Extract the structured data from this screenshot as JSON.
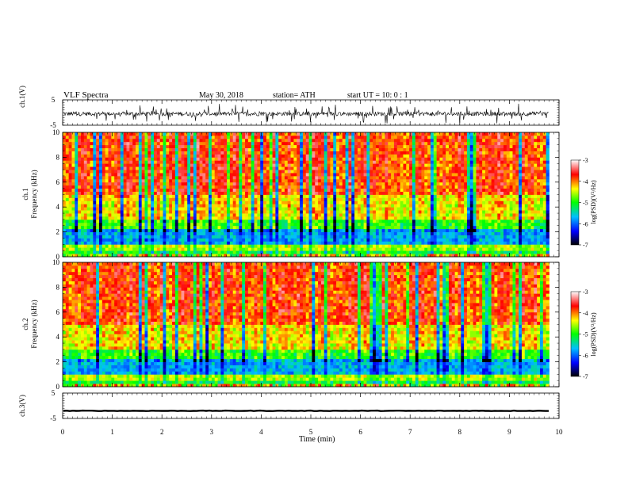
{
  "header": {
    "title": "VLF Spectra",
    "date": "May 30, 2018",
    "station": "station= ATH",
    "start_ut": "start  UT  =    10: 0   : 1"
  },
  "chart_data": [
    {
      "type": "line",
      "name": "waveform-ch1",
      "ylabel": "ch.1(V)",
      "ylim": [
        -5,
        5
      ],
      "yticks": [
        "5",
        "-5"
      ],
      "xlim": [
        0,
        10
      ],
      "data_extent_min": 9.8,
      "signal_level": "noisy trace around -0.5 V, excursions to about ±4 V"
    },
    {
      "type": "heatmap",
      "name": "spectrogram-ch1",
      "ylabel_lines": [
        "ch.1",
        "Frequency  (kHz)"
      ],
      "ylim": [
        0,
        10
      ],
      "yticks": [
        "0",
        "2",
        "4",
        "6",
        "8",
        "10"
      ],
      "xlim": [
        0,
        10
      ],
      "data_extent_min": 9.8,
      "colorbar": {
        "label": "log(PSD)(V²/Hz)",
        "range": [
          -7,
          -3
        ],
        "ticks": [
          "-3",
          "-4",
          "-5",
          "-6",
          "-7"
        ],
        "colors": [
          "#000000",
          "#0000ff",
          "#00bfff",
          "#00ff00",
          "#ffff00",
          "#ff0000",
          "#ffffff"
        ]
      }
    },
    {
      "type": "heatmap",
      "name": "spectrogram-ch2",
      "ylabel_lines": [
        "ch.2",
        "Frequency  (kHz)"
      ],
      "ylim": [
        0,
        10
      ],
      "yticks": [
        "0",
        "2",
        "4",
        "6",
        "8",
        "10"
      ],
      "xlim": [
        0,
        10
      ],
      "data_extent_min": 9.8,
      "colorbar": {
        "label": "log(PSD)(V²/Hz)",
        "range": [
          -7,
          -3
        ],
        "ticks": [
          "-3",
          "-4",
          "-5",
          "-6",
          "-7"
        ],
        "colors": [
          "#000000",
          "#0000ff",
          "#00bfff",
          "#00ff00",
          "#ffff00",
          "#ff0000",
          "#ffffff"
        ]
      }
    },
    {
      "type": "line",
      "name": "waveform-ch3",
      "ylabel": "ch.3(V)",
      "ylim": [
        -5,
        5
      ],
      "yticks": [
        "5",
        "-5"
      ],
      "xlim": [
        0,
        10
      ],
      "data_extent_min": 9.8,
      "signal_level": "flat trace near -2 V"
    }
  ],
  "xaxis": {
    "label": "Time  (min)",
    "ticks": [
      "0",
      "1",
      "2",
      "3",
      "4",
      "5",
      "6",
      "7",
      "8",
      "9",
      "10"
    ]
  }
}
